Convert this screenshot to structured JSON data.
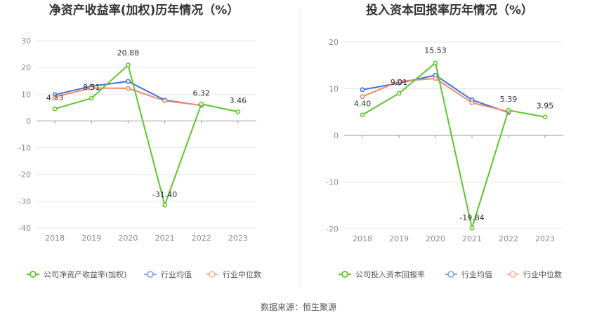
{
  "source_label": "数据来源：恒生聚源",
  "chart_data": [
    {
      "type": "line",
      "title": "净资产收益率(加权)历年情况（%）",
      "x": [
        "2018",
        "2019",
        "2020",
        "2021",
        "2022",
        "2023"
      ],
      "ylim": [
        -40,
        30
      ],
      "yticks": [
        30,
        20,
        10,
        0,
        -10,
        -20,
        -30,
        -40
      ],
      "grid": true,
      "legend_position": "bottom",
      "series": [
        {
          "name": "公司净资产收益率(加权)",
          "color": "#5ec330",
          "values": [
            4.53,
            8.51,
            20.88,
            -31.4,
            6.32,
            3.46
          ],
          "labels": [
            "4.53",
            "8.51",
            "20.88",
            "-31.40",
            "6.32",
            "3.46"
          ]
        },
        {
          "name": "行业均值",
          "color": "#4472d9",
          "values": [
            9.8,
            13.0,
            14.8,
            7.8,
            5.8,
            null
          ]
        },
        {
          "name": "行业中位数",
          "color": "#f08a6a",
          "values": [
            9.0,
            12.3,
            12.2,
            7.5,
            5.9,
            null
          ]
        }
      ]
    },
    {
      "type": "line",
      "title": "投入资本回报率历年情况（%）",
      "x": [
        "2018",
        "2019",
        "2020",
        "2021",
        "2022",
        "2023"
      ],
      "ylim": [
        -20,
        20
      ],
      "yticks": [
        20,
        10,
        0,
        -10,
        -20
      ],
      "grid": true,
      "legend_position": "bottom",
      "series": [
        {
          "name": "公司投入资本回报率",
          "color": "#5ec330",
          "values": [
            4.4,
            9.01,
            15.53,
            -19.84,
            5.39,
            3.95
          ],
          "labels": [
            "4.40",
            "9.01",
            "15.53",
            "-19.84",
            "5.39",
            "3.95"
          ]
        },
        {
          "name": "行业均值",
          "color": "#4472d9",
          "values": [
            9.8,
            11.2,
            12.9,
            7.6,
            4.9,
            null
          ]
        },
        {
          "name": "行业中位数",
          "color": "#f08a6a",
          "values": [
            8.3,
            11.6,
            12.2,
            7.0,
            5.1,
            null
          ]
        }
      ]
    }
  ]
}
